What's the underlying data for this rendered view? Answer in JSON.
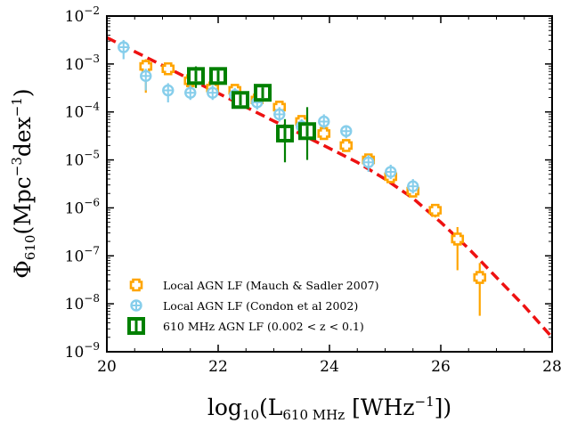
{
  "chart_data": {
    "type": "scatter",
    "title": "",
    "xlabel": "log10(L610 MHz [WHz−1])",
    "xlabel_parts": {
      "base": "log",
      "base_sub": "10",
      "open": "(L",
      "sub": "610 MHz",
      "bracket": " [WHz",
      "sup": "−1",
      "close": "])"
    },
    "ylabel": "Φ610(Mpc−3dex−1)",
    "ylabel_parts": {
      "phi": "Φ",
      "phi_sub": "610",
      "unit_a": "(Mpc",
      "sup_a": "−3",
      "unit_b": "dex",
      "sup_b": "−1",
      "close": ")"
    },
    "xlim": [
      20,
      28
    ],
    "ylim_log10": [
      -9,
      -2
    ],
    "y_scale": "log",
    "grid": false,
    "legend_position": "lower-left",
    "x_ticks": [
      {
        "value": 20,
        "label": "20"
      },
      {
        "value": 22,
        "label": "22"
      },
      {
        "value": 24,
        "label": "24"
      },
      {
        "value": 26,
        "label": "26"
      },
      {
        "value": 28,
        "label": "28"
      }
    ],
    "y_ticks": [
      {
        "exp": -2,
        "base": "10",
        "sup": "−2"
      },
      {
        "exp": -3,
        "base": "10",
        "sup": "−3"
      },
      {
        "exp": -4,
        "base": "10",
        "sup": "−4"
      },
      {
        "exp": -5,
        "base": "10",
        "sup": "−5"
      },
      {
        "exp": -6,
        "base": "10",
        "sup": "−6"
      },
      {
        "exp": -7,
        "base": "10",
        "sup": "−7"
      },
      {
        "exp": -8,
        "base": "10",
        "sup": "−8"
      },
      {
        "exp": -9,
        "base": "10",
        "sup": "−9"
      }
    ],
    "fit_line": {
      "color": "#ee1111",
      "style": "dashed",
      "x": [
        20.0,
        20.5,
        21.0,
        21.5,
        22.0,
        22.5,
        23.0,
        23.5,
        24.0,
        24.5,
        25.0,
        25.5,
        26.0,
        26.5,
        27.0,
        27.5,
        28.0
      ],
      "log10_y": [
        -2.45,
        -2.74,
        -3.03,
        -3.32,
        -3.61,
        -3.9,
        -4.19,
        -4.47,
        -4.76,
        -5.05,
        -5.4,
        -5.8,
        -6.3,
        -6.85,
        -7.45,
        -8.05,
        -8.7
      ]
    },
    "series": [
      {
        "name": "Local AGN LF (Mauch & Sadler 2007)",
        "color": "#ffa500",
        "marker": "plus",
        "points": [
          {
            "x": 20.7,
            "log10_y": -3.05,
            "err_lo": 0.55,
            "err_hi": 0.15
          },
          {
            "x": 21.1,
            "log10_y": -3.1,
            "err_lo": 0.12,
            "err_hi": 0.12
          },
          {
            "x": 21.5,
            "log10_y": -3.35,
            "err_lo": 0.12,
            "err_hi": 0.1
          },
          {
            "x": 21.9,
            "log10_y": -3.5,
            "err_lo": 0.12,
            "err_hi": 0.1
          },
          {
            "x": 22.3,
            "log10_y": -3.55,
            "err_lo": 0.12,
            "err_hi": 0.1
          },
          {
            "x": 22.7,
            "log10_y": -3.75,
            "err_lo": 0.12,
            "err_hi": 0.1
          },
          {
            "x": 23.1,
            "log10_y": -3.9,
            "err_lo": 0.12,
            "err_hi": 0.1
          },
          {
            "x": 23.5,
            "log10_y": -4.2,
            "err_lo": 0.12,
            "err_hi": 0.1
          },
          {
            "x": 23.9,
            "log10_y": -4.45,
            "err_lo": 0.12,
            "err_hi": 0.1
          },
          {
            "x": 24.3,
            "log10_y": -4.7,
            "err_lo": 0.12,
            "err_hi": 0.1
          },
          {
            "x": 24.7,
            "log10_y": -5.0,
            "err_lo": 0.12,
            "err_hi": 0.1
          },
          {
            "x": 25.1,
            "log10_y": -5.35,
            "err_lo": 0.12,
            "err_hi": 0.1
          },
          {
            "x": 25.5,
            "log10_y": -5.65,
            "err_lo": 0.12,
            "err_hi": 0.1
          },
          {
            "x": 25.9,
            "log10_y": -6.05,
            "err_lo": 0.15,
            "err_hi": 0.12
          },
          {
            "x": 26.3,
            "log10_y": -6.65,
            "err_lo": 0.65,
            "err_hi": 0.25
          },
          {
            "x": 26.7,
            "log10_y": -7.45,
            "err_lo": 0.8,
            "err_hi": 0.3
          }
        ]
      },
      {
        "name": "Local AGN LF (Condon et al 2002)",
        "color": "#87ceeb",
        "marker": "circle-plus",
        "points": [
          {
            "x": 20.3,
            "log10_y": -2.65,
            "err_lo": 0.25,
            "err_hi": 0.15
          },
          {
            "x": 20.7,
            "log10_y": -3.25,
            "err_lo": 0.3,
            "err_hi": 0.15
          },
          {
            "x": 21.1,
            "log10_y": -3.55,
            "err_lo": 0.25,
            "err_hi": 0.15
          },
          {
            "x": 21.5,
            "log10_y": -3.6,
            "err_lo": 0.15,
            "err_hi": 0.15
          },
          {
            "x": 21.9,
            "log10_y": -3.6,
            "err_lo": 0.15,
            "err_hi": 0.15
          },
          {
            "x": 22.3,
            "log10_y": -3.65,
            "err_lo": 0.15,
            "err_hi": 0.15
          },
          {
            "x": 22.7,
            "log10_y": -3.8,
            "err_lo": 0.15,
            "err_hi": 0.15
          },
          {
            "x": 23.1,
            "log10_y": -4.05,
            "err_lo": 0.15,
            "err_hi": 0.15
          },
          {
            "x": 23.5,
            "log10_y": -4.3,
            "err_lo": 0.15,
            "err_hi": 0.15
          },
          {
            "x": 23.9,
            "log10_y": -4.2,
            "err_lo": 0.15,
            "err_hi": 0.15
          },
          {
            "x": 24.3,
            "log10_y": -4.4,
            "err_lo": 0.15,
            "err_hi": 0.12
          },
          {
            "x": 24.7,
            "log10_y": -5.05,
            "err_lo": 0.2,
            "err_hi": 0.15
          },
          {
            "x": 25.1,
            "log10_y": -5.25,
            "err_lo": 0.15,
            "err_hi": 0.15
          },
          {
            "x": 25.5,
            "log10_y": -5.55,
            "err_lo": 0.15,
            "err_hi": 0.15
          }
        ]
      },
      {
        "name": "610 MHz AGN LF (0.002 < z < 0.1)",
        "color": "#008000",
        "marker": "square",
        "points": [
          {
            "x": 21.6,
            "log10_y": -3.25,
            "err_lo": 0.25,
            "err_hi": 0.2
          },
          {
            "x": 22.0,
            "log10_y": -3.25,
            "err_lo": 0.15,
            "err_hi": 0.1
          },
          {
            "x": 22.4,
            "log10_y": -3.75,
            "err_lo": 0.1,
            "err_hi": 0.1
          },
          {
            "x": 22.8,
            "log10_y": -3.6,
            "err_lo": 0.12,
            "err_hi": 0.1
          },
          {
            "x": 23.2,
            "log10_y": -4.45,
            "err_lo": 0.6,
            "err_hi": 0.3
          },
          {
            "x": 23.6,
            "log10_y": -4.4,
            "err_lo": 0.6,
            "err_hi": 0.5
          }
        ]
      }
    ],
    "legend": [
      {
        "label": "Local AGN LF (Mauch & Sadler 2007)",
        "marker": "plus",
        "color": "#ffa500"
      },
      {
        "label": "Local AGN LF (Condon et al 2002)",
        "marker": "circle-plus",
        "color": "#87ceeb"
      },
      {
        "label": "610 MHz AGN LF (0.002 < z < 0.1)",
        "marker": "square",
        "color": "#008000"
      }
    ]
  }
}
